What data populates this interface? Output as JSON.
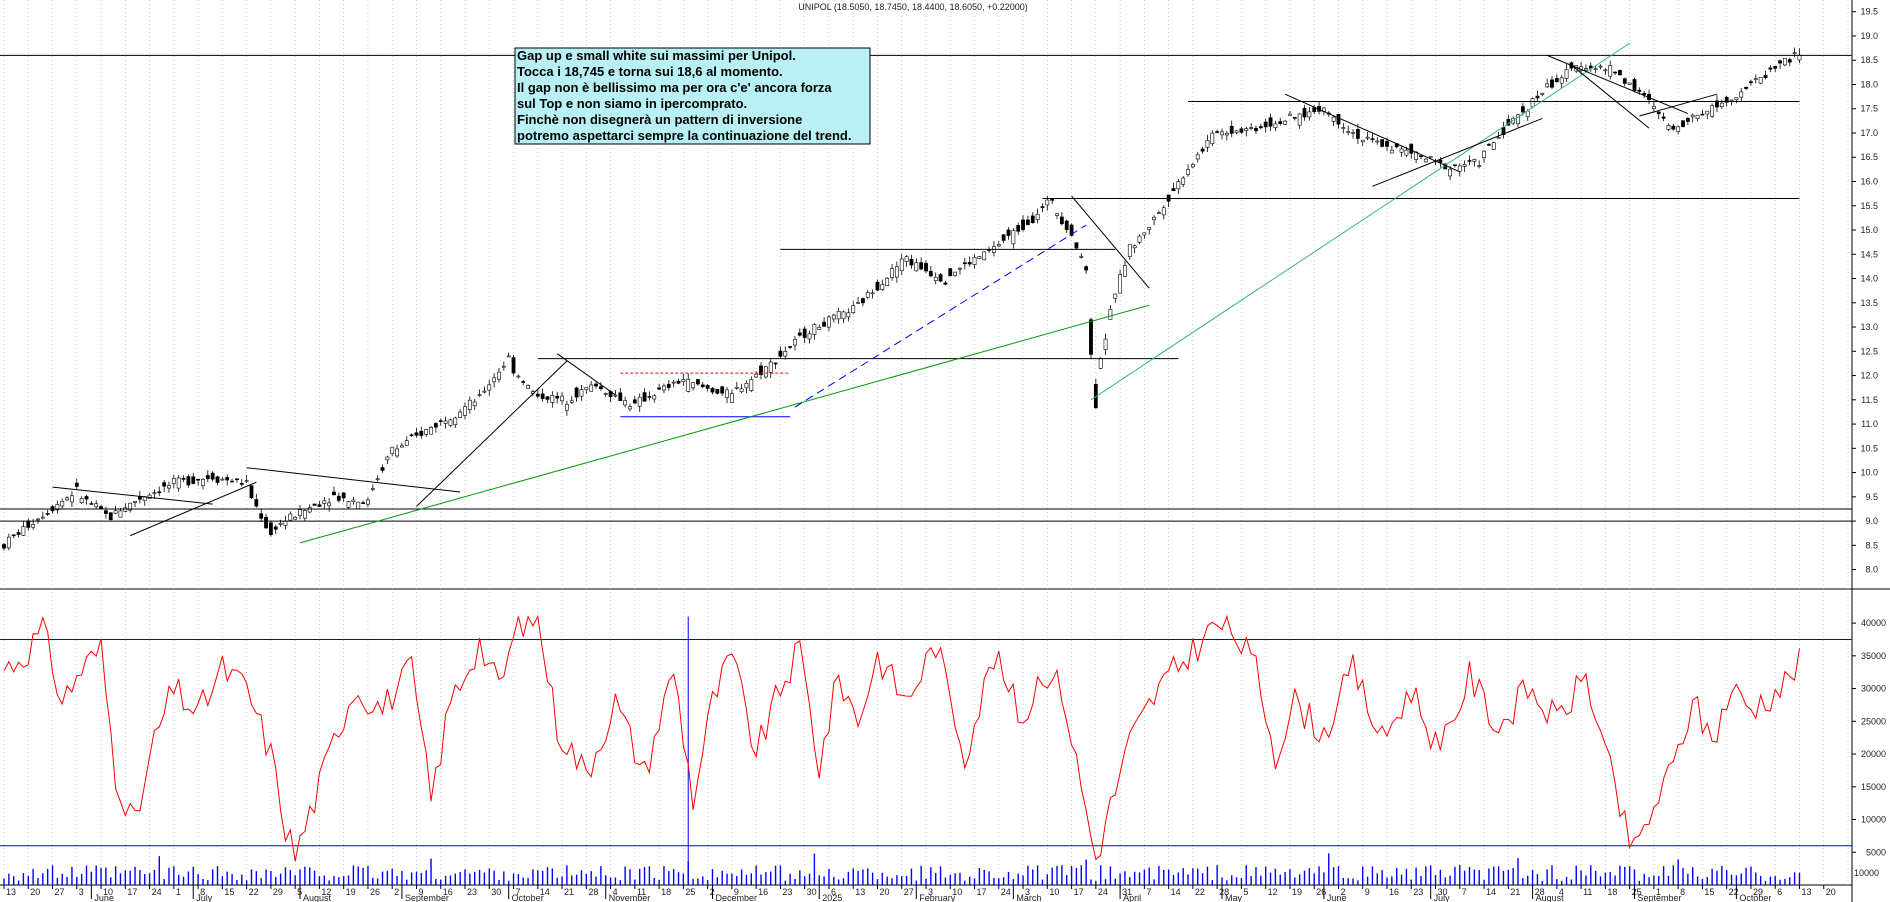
{
  "header": {
    "title": "UNIPOL (18.5050, 18.7450, 18.4400, 18.6050, +0.22000)"
  },
  "annotation": {
    "lines": [
      "Gap up e small white sui massimi per Unipol.",
      "Tocca i 18,745 e torna sui 18,6 al momento.",
      "Il gap non è bellissimo ma per ora c'e' ancora forza",
      "sul Top e non siamo in ipercomprato.",
      "Finchè non disegnerà un pattern di inversione",
      "potremo aspettarci sempre la continuazione del trend."
    ],
    "background": "#b8f0f4",
    "border": "#000000"
  },
  "chart_data": [
    {
      "type": "candlestick",
      "title": "UNIPOL (18.5050, 18.7450, 18.4400, 18.6050, +0.22000)",
      "last_bar": {
        "open": 18.505,
        "high": 18.745,
        "low": 18.44,
        "close": 18.605,
        "change": 0.22
      },
      "y_ticks": [
        "8.0",
        "8.5",
        "9.0",
        "9.5",
        "10.0",
        "10.5",
        "11.0",
        "11.5",
        "12.0",
        "12.5",
        "13.0",
        "13.5",
        "14.0",
        "14.5",
        "15.0",
        "15.5",
        "16.0",
        "16.5",
        "17.0",
        "17.5",
        "18.0",
        "18.5",
        "19.0",
        "19.5"
      ],
      "ylim": [
        7.6,
        19.7
      ],
      "grid": true,
      "price_path": [
        [
          0,
          8.5
        ],
        [
          8,
          9.1
        ],
        [
          15,
          9.6
        ],
        [
          22,
          9.1
        ],
        [
          29,
          9.5
        ],
        [
          36,
          9.8
        ],
        [
          43,
          9.9
        ],
        [
          50,
          9.8
        ],
        [
          55,
          8.8
        ],
        [
          60,
          9.1
        ],
        [
          68,
          9.5
        ],
        [
          75,
          9.4
        ],
        [
          80,
          10.4
        ],
        [
          88,
          10.9
        ],
        [
          98,
          11.5
        ],
        [
          104,
          12.3
        ],
        [
          110,
          11.6
        ],
        [
          116,
          11.5
        ],
        [
          122,
          11.8
        ],
        [
          130,
          11.4
        ],
        [
          140,
          11.9
        ],
        [
          150,
          11.6
        ],
        [
          158,
          12.2
        ],
        [
          166,
          12.9
        ],
        [
          176,
          13.4
        ],
        [
          186,
          14.4
        ],
        [
          194,
          14.0
        ],
        [
          204,
          14.6
        ],
        [
          212,
          15.2
        ],
        [
          216,
          15.6
        ],
        [
          220,
          15.0
        ],
        [
          223,
          14.3
        ],
        [
          225,
          11.9
        ],
        [
          227,
          12.6
        ],
        [
          229,
          13.5
        ],
        [
          232,
          14.5
        ],
        [
          238,
          15.3
        ],
        [
          244,
          16.2
        ],
        [
          250,
          17.0
        ],
        [
          258,
          17.1
        ],
        [
          266,
          17.3
        ],
        [
          272,
          17.5
        ],
        [
          280,
          16.9
        ],
        [
          290,
          16.6
        ],
        [
          298,
          16.3
        ],
        [
          304,
          16.4
        ],
        [
          310,
          17.1
        ],
        [
          318,
          17.9
        ],
        [
          325,
          18.4
        ],
        [
          332,
          18.3
        ],
        [
          338,
          17.8
        ],
        [
          344,
          17.1
        ],
        [
          350,
          17.4
        ],
        [
          356,
          17.7
        ],
        [
          362,
          18.1
        ],
        [
          366,
          18.4
        ],
        [
          370,
          18.605
        ]
      ],
      "horizontal_levels": [
        9.0,
        9.25,
        12.35,
        14.6,
        15.65,
        17.65,
        18.6
      ],
      "resistance_segments": [
        {
          "y": 12.35,
          "x0": 110,
          "x1": 242
        },
        {
          "y": 14.6,
          "x0": 160,
          "x1": 229
        },
        {
          "y": 15.65,
          "x0": 214,
          "x1": 370
        },
        {
          "y": 17.65,
          "x0": 244,
          "x1": 370
        }
      ],
      "support_segments": [
        {
          "y": 11.15,
          "x0": 127,
          "x1": 162,
          "color": "blue"
        },
        {
          "y": 12.05,
          "x0": 127,
          "x1": 162,
          "color": "red-dashed"
        }
      ],
      "trendlines": [
        {
          "from": [
            61,
            8.55
          ],
          "to": [
            236,
            13.45
          ],
          "color": "green"
        },
        {
          "from": [
            224,
            11.5
          ],
          "to": [
            335,
            18.85
          ],
          "color": "lightgreen"
        },
        {
          "from": [
            163,
            11.35
          ],
          "to": [
            223,
            15.1
          ],
          "color": "blue-dashed"
        },
        {
          "from": [
            85,
            9.3
          ],
          "to": [
            116,
            12.3
          ],
          "color": "black"
        },
        {
          "from": [
            26,
            8.7
          ],
          "to": [
            52,
            9.8
          ],
          "color": "black"
        },
        {
          "from": [
            50,
            10.1
          ],
          "to": [
            94,
            9.6
          ],
          "color": "black"
        },
        {
          "from": [
            10,
            9.7
          ],
          "to": [
            43,
            9.35
          ],
          "color": "black"
        },
        {
          "from": [
            114,
            12.45
          ],
          "to": [
            126,
            11.6
          ],
          "color": "black"
        },
        {
          "from": [
            220,
            15.7
          ],
          "to": [
            236,
            13.8
          ],
          "color": "black"
        },
        {
          "from": [
            264,
            17.8
          ],
          "to": [
            300,
            16.2
          ],
          "color": "black"
        },
        {
          "from": [
            282,
            15.9
          ],
          "to": [
            317,
            17.3
          ],
          "color": "black"
        },
        {
          "from": [
            318,
            18.6
          ],
          "to": [
            347,
            17.4
          ],
          "color": "black"
        },
        {
          "from": [
            323,
            18.4
          ],
          "to": [
            339,
            17.1
          ],
          "color": "black"
        },
        {
          "from": [
            337,
            17.35
          ],
          "to": [
            353,
            17.8
          ],
          "color": "black"
        }
      ],
      "x_tick_labels": [
        "13",
        "20",
        "27",
        "3",
        "10",
        "17",
        "24",
        "1",
        "8",
        "15",
        "22",
        "29",
        "5",
        "12",
        "19",
        "26",
        "2",
        "9",
        "16",
        "23",
        "30",
        "7",
        "14",
        "21",
        "28",
        "4",
        "11",
        "18",
        "25",
        "2",
        "9",
        "16",
        "23",
        "30",
        "6",
        "13",
        "20",
        "27",
        "3",
        "10",
        "17",
        "24",
        "3",
        "10",
        "17",
        "24",
        "31",
        "7",
        "14",
        "22",
        "28",
        "5",
        "12",
        "19",
        "26",
        "2",
        "9",
        "16",
        "23",
        "30",
        "7",
        "14",
        "21",
        "28",
        "4",
        "11",
        "18",
        "25",
        "1",
        "8",
        "15",
        "22",
        "29",
        "6",
        "13",
        "20"
      ],
      "month_labels": [
        {
          "label": "June",
          "day": 3
        },
        {
          "label": "July",
          "day": 1
        },
        {
          "label": "August",
          "day": 5
        },
        {
          "label": "September",
          "day": 2
        },
        {
          "label": "October",
          "day": 30
        },
        {
          "label": "November",
          "day": 4
        },
        {
          "label": "December",
          "day": 2
        },
        {
          "label": "2025",
          "day": 30
        },
        {
          "label": "February",
          "day": 3
        },
        {
          "label": "March",
          "day": 3
        },
        {
          "label": "April",
          "day": 31
        },
        {
          "label": "May",
          "day": 28
        },
        {
          "label": "June",
          "day": 2
        },
        {
          "label": "July",
          "day": 30
        },
        {
          "label": "August",
          "day": 4
        },
        {
          "label": "September",
          "day": 1
        },
        {
          "label": "October",
          "day": 29
        }
      ]
    },
    {
      "type": "line",
      "series_color": "#ff0000",
      "y_ticks": [
        "5000",
        "10000",
        "15000",
        "20000",
        "25000",
        "30000",
        "35000",
        "40000"
      ],
      "ylim": [
        0,
        42000
      ],
      "reference_lines": [
        37500,
        6000
      ],
      "oscillator_path": [
        [
          0,
          33000
        ],
        [
          4,
          35000
        ],
        [
          8,
          39000
        ],
        [
          12,
          28000
        ],
        [
          16,
          33000
        ],
        [
          20,
          36000
        ],
        [
          23,
          17000
        ],
        [
          27,
          9000
        ],
        [
          31,
          22000
        ],
        [
          35,
          30000
        ],
        [
          40,
          26000
        ],
        [
          45,
          33000
        ],
        [
          50,
          30000
        ],
        [
          55,
          20000
        ],
        [
          58,
          9000
        ],
        [
          60,
          4500
        ],
        [
          64,
          13000
        ],
        [
          68,
          22000
        ],
        [
          72,
          30000
        ],
        [
          78,
          27000
        ],
        [
          84,
          33000
        ],
        [
          88,
          13000
        ],
        [
          92,
          28000
        ],
        [
          98,
          37000
        ],
        [
          102,
          30000
        ],
        [
          106,
          40000
        ],
        [
          110,
          41000
        ],
        [
          114,
          24000
        ],
        [
          120,
          17000
        ],
        [
          126,
          28000
        ],
        [
          132,
          17000
        ],
        [
          138,
          33000
        ],
        [
          142,
          13000
        ],
        [
          146,
          28000
        ],
        [
          150,
          35000
        ],
        [
          155,
          20000
        ],
        [
          160,
          30000
        ],
        [
          164,
          36000
        ],
        [
          168,
          18000
        ],
        [
          172,
          32000
        ],
        [
          176,
          25000
        ],
        [
          180,
          35000
        ],
        [
          186,
          28000
        ],
        [
          192,
          37000
        ],
        [
          198,
          20000
        ],
        [
          204,
          35000
        ],
        [
          210,
          25000
        ],
        [
          214,
          33000
        ],
        [
          218,
          30000
        ],
        [
          222,
          15000
        ],
        [
          225,
          4000
        ],
        [
          228,
          12000
        ],
        [
          232,
          22000
        ],
        [
          238,
          30000
        ],
        [
          244,
          35000
        ],
        [
          250,
          40000
        ],
        [
          254,
          38000
        ],
        [
          258,
          33000
        ],
        [
          262,
          20000
        ],
        [
          266,
          28000
        ],
        [
          272,
          23000
        ],
        [
          278,
          33000
        ],
        [
          284,
          22000
        ],
        [
          290,
          30000
        ],
        [
          296,
          20000
        ],
        [
          302,
          32000
        ],
        [
          308,
          24000
        ],
        [
          314,
          30000
        ],
        [
          320,
          25000
        ],
        [
          326,
          32000
        ],
        [
          330,
          20000
        ],
        [
          334,
          9000
        ],
        [
          336,
          5000
        ],
        [
          340,
          12000
        ],
        [
          344,
          18000
        ],
        [
          348,
          28000
        ],
        [
          352,
          22000
        ],
        [
          356,
          30000
        ],
        [
          360,
          27000
        ],
        [
          366,
          30000
        ],
        [
          370,
          34000
        ]
      ],
      "volume_spikes": [
        32,
        88,
        141,
        167,
        223,
        273,
        312,
        345
      ]
    }
  ],
  "axis": {
    "volume_corner_label": "10000"
  },
  "colors": {
    "candle_up": "#ffffff",
    "candle_down": "#000000",
    "grid": "#b0b0b0",
    "level_line": "#000000",
    "oscillator": "#ff0000",
    "reference": "#0000ff",
    "volume": "#0000ff"
  }
}
